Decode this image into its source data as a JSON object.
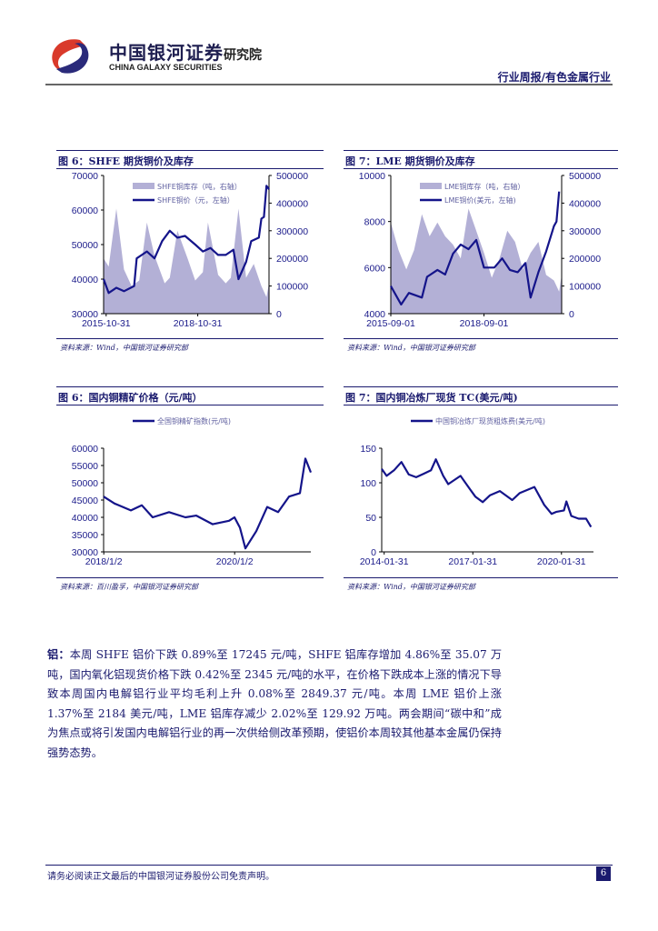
{
  "header": {
    "logo_cn": "中国银河证券",
    "logo_en": "CHINA GALAXY SECURITIES",
    "logo_sub": "研究院",
    "section": "行业周报/有色金属行业"
  },
  "colors": {
    "line": "#14148a",
    "area": "#b3b0d6",
    "text": "#1a1a6e"
  },
  "charts": [
    {
      "title": "图 6：SHFE 期货铜价及库存",
      "source": "资料来源：Wind，中国银河证券研究部",
      "chart_data": {
        "type": "line+area",
        "xticks": [
          "2015-10-31",
          "2018-10-31"
        ],
        "x_range": [
          "2015-10",
          "2021-03"
        ],
        "ylim_left": [
          30000,
          70000
        ],
        "yticks_left": [
          "30000",
          "40000",
          "50000",
          "60000",
          "70000"
        ],
        "ylim_right": [
          0,
          500000
        ],
        "yticks_right": [
          "0",
          "100000",
          "200000",
          "300000",
          "400000",
          "500000"
        ],
        "area": {
          "name": "SHFE铜库存（吨，右轴）",
          "points": [
            [
              "2015-10",
              200000
            ],
            [
              "2015-12",
              170000
            ],
            [
              "2016-03",
              380000
            ],
            [
              "2016-06",
              160000
            ],
            [
              "2016-09",
              100000
            ],
            [
              "2016-12",
              120000
            ],
            [
              "2017-03",
              330000
            ],
            [
              "2017-06",
              210000
            ],
            [
              "2017-10",
              110000
            ],
            [
              "2017-12",
              130000
            ],
            [
              "2018-03",
              300000
            ],
            [
              "2018-07",
              200000
            ],
            [
              "2018-10",
              120000
            ],
            [
              "2019-01",
              150000
            ],
            [
              "2019-03",
              330000
            ],
            [
              "2019-07",
              140000
            ],
            [
              "2019-10",
              110000
            ],
            [
              "2019-12",
              130000
            ],
            [
              "2020-03",
              380000
            ],
            [
              "2020-06",
              130000
            ],
            [
              "2020-09",
              180000
            ],
            [
              "2020-12",
              100000
            ],
            [
              "2021-02",
              60000
            ],
            [
              "2021-03",
              110000
            ]
          ]
        },
        "line": {
          "name": "SHFE铜价（元，左轴）",
          "points": [
            [
              "2015-10",
              40000
            ],
            [
              "2015-12",
              36000
            ],
            [
              "2016-03",
              37500
            ],
            [
              "2016-06",
              36500
            ],
            [
              "2016-10",
              38000
            ],
            [
              "2016-11",
              46000
            ],
            [
              "2017-03",
              48000
            ],
            [
              "2017-06",
              46000
            ],
            [
              "2017-09",
              51000
            ],
            [
              "2017-12",
              54000
            ],
            [
              "2018-03",
              52000
            ],
            [
              "2018-06",
              52500
            ],
            [
              "2018-10",
              50000
            ],
            [
              "2019-01",
              48000
            ],
            [
              "2019-04",
              49000
            ],
            [
              "2019-07",
              47000
            ],
            [
              "2019-10",
              47000
            ],
            [
              "2020-01",
              48500
            ],
            [
              "2020-03",
              40000
            ],
            [
              "2020-06",
              45000
            ],
            [
              "2020-08",
              51000
            ],
            [
              "2020-11",
              52000
            ],
            [
              "2020-12",
              57500
            ],
            [
              "2021-01",
              58000
            ],
            [
              "2021-02",
              67000
            ],
            [
              "2021-03",
              66000
            ]
          ]
        }
      }
    },
    {
      "title": "图 7：LME 期货铜价及库存",
      "source": "资料来源：Wind，中国银河证券研究部",
      "chart_data": {
        "type": "line+area",
        "xticks": [
          "2015-09-01",
          "2018-09-01"
        ],
        "x_range": [
          "2015-09",
          "2021-03"
        ],
        "ylim_left": [
          4000,
          10000
        ],
        "yticks_left": [
          "4000",
          "6000",
          "8000",
          "10000"
        ],
        "ylim_right": [
          0,
          500000
        ],
        "yticks_right": [
          "0",
          "100000",
          "200000",
          "300000",
          "400000",
          "500000"
        ],
        "area": {
          "name": "LME铜库存（吨，右轴）",
          "points": [
            [
              "2015-09",
              330000
            ],
            [
              "2015-12",
              230000
            ],
            [
              "2016-03",
              160000
            ],
            [
              "2016-06",
              230000
            ],
            [
              "2016-09",
              360000
            ],
            [
              "2016-12",
              280000
            ],
            [
              "2017-03",
              330000
            ],
            [
              "2017-06",
              280000
            ],
            [
              "2017-09",
              250000
            ],
            [
              "2017-12",
              200000
            ],
            [
              "2018-03",
              380000
            ],
            [
              "2018-06",
              300000
            ],
            [
              "2018-09",
              220000
            ],
            [
              "2018-12",
              130000
            ],
            [
              "2019-03",
              200000
            ],
            [
              "2019-06",
              300000
            ],
            [
              "2019-09",
              260000
            ],
            [
              "2019-12",
              160000
            ],
            [
              "2020-03",
              220000
            ],
            [
              "2020-06",
              260000
            ],
            [
              "2020-09",
              140000
            ],
            [
              "2020-12",
              120000
            ],
            [
              "2021-02",
              80000
            ],
            [
              "2021-03",
              140000
            ]
          ]
        },
        "line": {
          "name": "LME铜价(美元，左轴)",
          "points": [
            [
              "2015-09",
              5200
            ],
            [
              "2015-12",
              4600
            ],
            [
              "2016-01",
              4400
            ],
            [
              "2016-04",
              4900
            ],
            [
              "2016-09",
              4700
            ],
            [
              "2016-11",
              5600
            ],
            [
              "2017-03",
              5900
            ],
            [
              "2017-06",
              5700
            ],
            [
              "2017-09",
              6600
            ],
            [
              "2017-12",
              7000
            ],
            [
              "2018-03",
              6800
            ],
            [
              "2018-06",
              7200
            ],
            [
              "2018-09",
              6000
            ],
            [
              "2019-01",
              6000
            ],
            [
              "2019-04",
              6400
            ],
            [
              "2019-07",
              5900
            ],
            [
              "2019-10",
              5800
            ],
            [
              "2020-01",
              6200
            ],
            [
              "2020-03",
              4700
            ],
            [
              "2020-06",
              5800
            ],
            [
              "2020-09",
              6700
            ],
            [
              "2020-12",
              7800
            ],
            [
              "2021-01",
              8000
            ],
            [
              "2021-02",
              9300
            ]
          ]
        }
      }
    },
    {
      "title": "图 6：国内铜精矿价格（元/吨）",
      "source": "资料来源：百川盈孚，中国银河证券研究部",
      "chart_data": {
        "type": "line",
        "xticks": [
          "2018/1/2",
          "2020/1/2"
        ],
        "x_range": [
          "2018-01",
          "2021-03"
        ],
        "ylim_left": [
          30000,
          60000
        ],
        "yticks_left": [
          "30000",
          "35000",
          "40000",
          "45000",
          "50000",
          "55000",
          "60000"
        ],
        "line": {
          "name": "全国铜精矿指数(元/吨)",
          "points": [
            [
              "2018-01",
              46000
            ],
            [
              "2018-03",
              44000
            ],
            [
              "2018-06",
              42000
            ],
            [
              "2018-08",
              43500
            ],
            [
              "2018-10",
              40000
            ],
            [
              "2019-01",
              41500
            ],
            [
              "2019-04",
              40000
            ],
            [
              "2019-06",
              40500
            ],
            [
              "2019-09",
              38000
            ],
            [
              "2019-12",
              39000
            ],
            [
              "2020-01",
              40000
            ],
            [
              "2020-02",
              37000
            ],
            [
              "2020-03",
              31000
            ],
            [
              "2020-05",
              36000
            ],
            [
              "2020-07",
              43000
            ],
            [
              "2020-09",
              41500
            ],
            [
              "2020-11",
              46000
            ],
            [
              "2021-01",
              47000
            ],
            [
              "2021-02",
              57000
            ],
            [
              "2021-03",
              53000
            ]
          ]
        }
      }
    },
    {
      "title": "图 7：国内铜冶炼厂现货 TC(美元/吨)",
      "source": "资料来源：Wind，中国银河证券研究部",
      "chart_data": {
        "type": "line",
        "xticks": [
          "2014-01-31",
          "2017-01-31",
          "2020-01-31"
        ],
        "x_range": [
          "2014-01",
          "2021-03"
        ],
        "ylim_left": [
          0,
          150
        ],
        "yticks_left": [
          "0",
          "50",
          "100",
          "150"
        ],
        "line": {
          "name": "中国铜冶炼厂现货粗炼费(美元/吨)",
          "points": [
            [
              "2014-01",
              120
            ],
            [
              "2014-03",
              110
            ],
            [
              "2014-06",
              118
            ],
            [
              "2014-09",
              130
            ],
            [
              "2014-12",
              112
            ],
            [
              "2015-03",
              108
            ],
            [
              "2015-06",
              113
            ],
            [
              "2015-09",
              118
            ],
            [
              "2015-11",
              134
            ],
            [
              "2016-02",
              110
            ],
            [
              "2016-04",
              98
            ],
            [
              "2016-09",
              110
            ],
            [
              "2017-01",
              90
            ],
            [
              "2017-03",
              80
            ],
            [
              "2017-06",
              72
            ],
            [
              "2017-09",
              82
            ],
            [
              "2018-01",
              88
            ],
            [
              "2018-06",
              75
            ],
            [
              "2018-09",
              85
            ],
            [
              "2019-03",
              94
            ],
            [
              "2019-07",
              68
            ],
            [
              "2019-10",
              55
            ],
            [
              "2019-12",
              58
            ],
            [
              "2020-03",
              60
            ],
            [
              "2020-04",
              73
            ],
            [
              "2020-06",
              52
            ],
            [
              "2020-09",
              48
            ],
            [
              "2020-12",
              48
            ],
            [
              "2021-02",
              36
            ]
          ]
        }
      }
    }
  ],
  "body": {
    "lead": "铝：",
    "text": "本周 SHFE 铝价下跌 0.89%至 17245 元/吨，SHFE 铝库存增加 4.86%至 35.07 万吨，国内氧化铝现货价格下跌 0.42%至 2345 元/吨的水平，在价格下跌成本上涨的情况下导致本周国内电解铝行业平均毛利上升 0.08%至 2849.37 元/吨。本周 LME 铝价上涨 1.37%至 2184 美元/吨，LME 铝库存减少 2.02%至 129.92 万吨。两会期间“碳中和”成为焦点或将引发国内电解铝行业的再一次供给侧改革预期，使铝价本周较其他基本金属仍保持强势态势。"
  },
  "footer": {
    "disclaimer": "请务必阅读正文最后的中国银河证券股份公司免责声明。",
    "page": "6"
  }
}
